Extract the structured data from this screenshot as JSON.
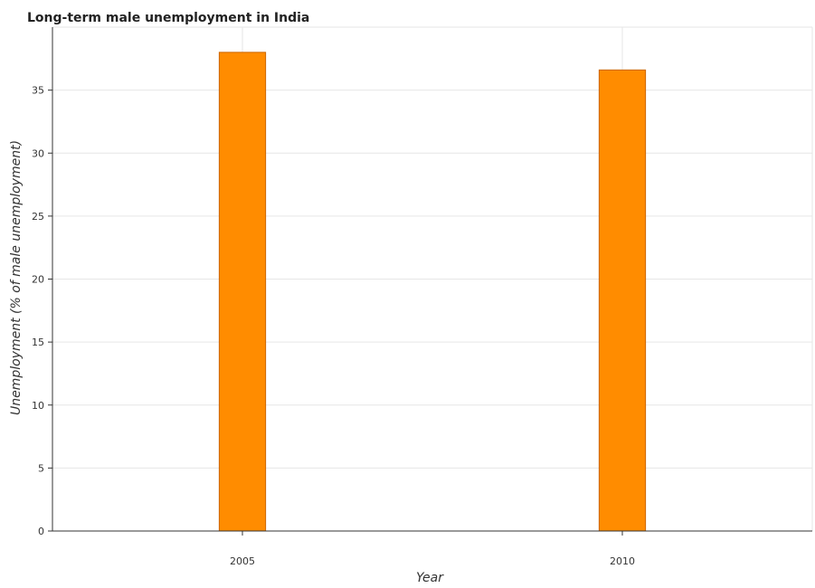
{
  "chart_data": {
    "type": "bar",
    "title": "Long-term male unemployment in India",
    "xlabel": "Year",
    "ylabel": "Unemployment (% of male unemployment)",
    "categories": [
      "2005",
      "2010"
    ],
    "values": [
      38.0,
      36.6
    ],
    "ylim": [
      0,
      40
    ],
    "yticks": [
      0,
      5,
      10,
      15,
      20,
      25,
      30,
      35
    ],
    "grid": true,
    "bar_color": "#ff8c00",
    "edge_color": "#cc6600"
  }
}
